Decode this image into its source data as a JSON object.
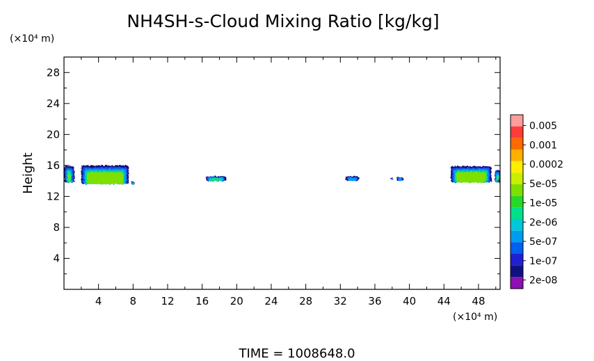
{
  "chart_data": {
    "type": "heatmap",
    "title": "NH4SH-s-Cloud Mixing Ratio [kg/kg]",
    "xlabel": "",
    "ylabel": "Height",
    "x_unit": "(×10⁴ m)",
    "y_unit": "(×10⁴ m)",
    "xlim": [
      0,
      50.5
    ],
    "ylim": [
      0,
      30
    ],
    "x_ticks": [
      "4",
      "8",
      "12",
      "16",
      "20",
      "24",
      "28",
      "32",
      "36",
      "40",
      "44",
      "48"
    ],
    "y_ticks": [
      "4",
      "8",
      "12",
      "16",
      "20",
      "24",
      "28"
    ],
    "colorbar": {
      "labels": [
        "0.005",
        "0.001",
        "0.0002",
        "5e-05",
        "1e-05",
        "2e-06",
        "5e-07",
        "1e-07",
        "2e-08"
      ],
      "colors_top_to_bottom": [
        "#ff9c9c",
        "#ff3c3c",
        "#ff6a00",
        "#ffb000",
        "#ffee00",
        "#c8ee00",
        "#7ee000",
        "#28d828",
        "#00e08c",
        "#00c8d8",
        "#009cf0",
        "#0060f0",
        "#2020d0",
        "#101080",
        "#8c10b4"
      ]
    },
    "cloud_regions": [
      {
        "x": [
          0,
          1.2
        ],
        "y": [
          13.8,
          15.9
        ],
        "max_level": "1e-05"
      },
      {
        "x": [
          2.0,
          7.5
        ],
        "y": [
          13.6,
          16.0
        ],
        "max_level": "1e-05"
      },
      {
        "x": [
          7.8,
          8.2
        ],
        "y": [
          13.5,
          13.9
        ],
        "max_level": "1e-05"
      },
      {
        "x": [
          16.4,
          18.8
        ],
        "y": [
          14.0,
          14.6
        ],
        "max_level": "2e-06"
      },
      {
        "x": [
          32.6,
          34.2
        ],
        "y": [
          14.0,
          14.6
        ],
        "max_level": "5e-07"
      },
      {
        "x": [
          37.8,
          38.1
        ],
        "y": [
          14.2,
          14.5
        ],
        "max_level": "1e-07"
      },
      {
        "x": [
          38.5,
          39.3
        ],
        "y": [
          14.0,
          14.5
        ],
        "max_level": "5e-07"
      },
      {
        "x": [
          44.8,
          49.5
        ],
        "y": [
          13.8,
          15.9
        ],
        "max_level": "1e-05"
      },
      {
        "x": [
          49.9,
          50.5
        ],
        "y": [
          13.8,
          15.4
        ],
        "max_level": "1e-05"
      }
    ],
    "grid": false,
    "legend": "right"
  },
  "footer": {
    "time_label": "TIME = 1008648.0"
  }
}
